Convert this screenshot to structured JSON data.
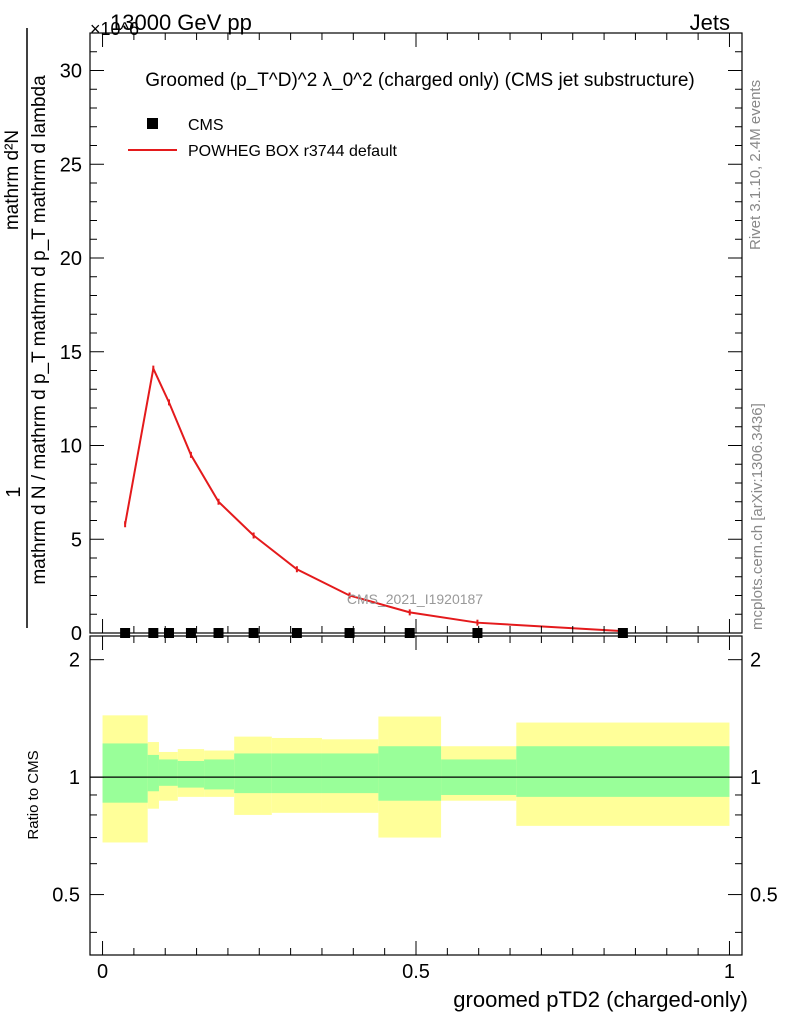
{
  "header": {
    "energy_label": "13000 GeV pp",
    "exponent_label": "×10^6",
    "process_label": "Jets"
  },
  "side_labels": {
    "rivet": "Rivet 3.1.10,  2.4M events",
    "mcplots": "mcplots.cern.ch [arXiv:1306.3436]"
  },
  "watermark": "CMS_2021_I1920187",
  "chart_data": [
    {
      "type": "line",
      "title": "Groomed (p_T^D)^2 λ_0^2  (charged only) (CMS jet substructure)",
      "ylabel": "1 / (mathrm d N / mathrm d p_T) · mathrm d²N / (mathrm d p_T mathrm d lambda)",
      "ylabel_numerator": "1",
      "ylabel_denominator": "mathrm d N / mathrm d p_T mathrm d p_T mathrm d lambda",
      "ylabel_top": "mathrm d²N",
      "y_scale_factor": "×10^6",
      "xlim": [
        -0.02,
        1.02
      ],
      "ylim": [
        0,
        32
      ],
      "yticks": [
        0,
        5,
        10,
        15,
        20,
        25,
        30
      ],
      "legend": [
        {
          "name": "CMS",
          "marker": "square",
          "color": "#000000"
        },
        {
          "name": "POWHEG BOX r3744 default",
          "marker": "line",
          "color": "#e41a1c"
        }
      ],
      "series": [
        {
          "name": "CMS",
          "x": [
            0.036,
            0.081,
            0.106,
            0.141,
            0.185,
            0.241,
            0.31,
            0.394,
            0.49,
            0.598,
            0.83
          ],
          "values": [
            0,
            0,
            0,
            0,
            0,
            0,
            0,
            0,
            0,
            0,
            0
          ]
        },
        {
          "name": "POWHEG BOX r3744 default",
          "x": [
            0.036,
            0.081,
            0.106,
            0.141,
            0.185,
            0.241,
            0.31,
            0.394,
            0.49,
            0.598,
            0.83
          ],
          "values": [
            5.8,
            14.1,
            12.3,
            9.5,
            7.0,
            5.2,
            3.4,
            2.0,
            1.1,
            0.55,
            0.1
          ]
        }
      ]
    },
    {
      "type": "area",
      "title": "",
      "ylabel": "Ratio to CMS",
      "xlabel": "groomed pTD2 (charged-only)",
      "xlim": [
        -0.02,
        1.02
      ],
      "ylim": [
        0.35,
        2.3
      ],
      "xticks": [
        0,
        0.5,
        1
      ],
      "xtick_labels": [
        "0",
        "0.5",
        "1"
      ],
      "yticks": [
        0.5,
        1,
        2
      ],
      "ytick_labels": [
        "0.5",
        "1",
        "2"
      ],
      "bins": [
        0.0,
        0.072,
        0.09,
        0.12,
        0.162,
        0.21,
        0.27,
        0.35,
        0.44,
        0.54,
        0.66,
        1.0
      ],
      "series": [
        {
          "name": "total uncertainty (yellow)",
          "lower": [
            0.68,
            0.83,
            0.87,
            0.89,
            0.89,
            0.8,
            0.81,
            0.81,
            0.7,
            0.87,
            0.75
          ],
          "upper": [
            1.44,
            1.23,
            1.16,
            1.18,
            1.17,
            1.27,
            1.26,
            1.25,
            1.43,
            1.2,
            1.38
          ]
        },
        {
          "name": "stat uncertainty (green)",
          "lower": [
            0.86,
            0.92,
            0.95,
            0.94,
            0.93,
            0.91,
            0.91,
            0.91,
            0.87,
            0.9,
            0.89
          ],
          "upper": [
            1.22,
            1.14,
            1.11,
            1.1,
            1.11,
            1.15,
            1.15,
            1.15,
            1.2,
            1.11,
            1.2
          ]
        }
      ],
      "reference_line": 1
    }
  ]
}
